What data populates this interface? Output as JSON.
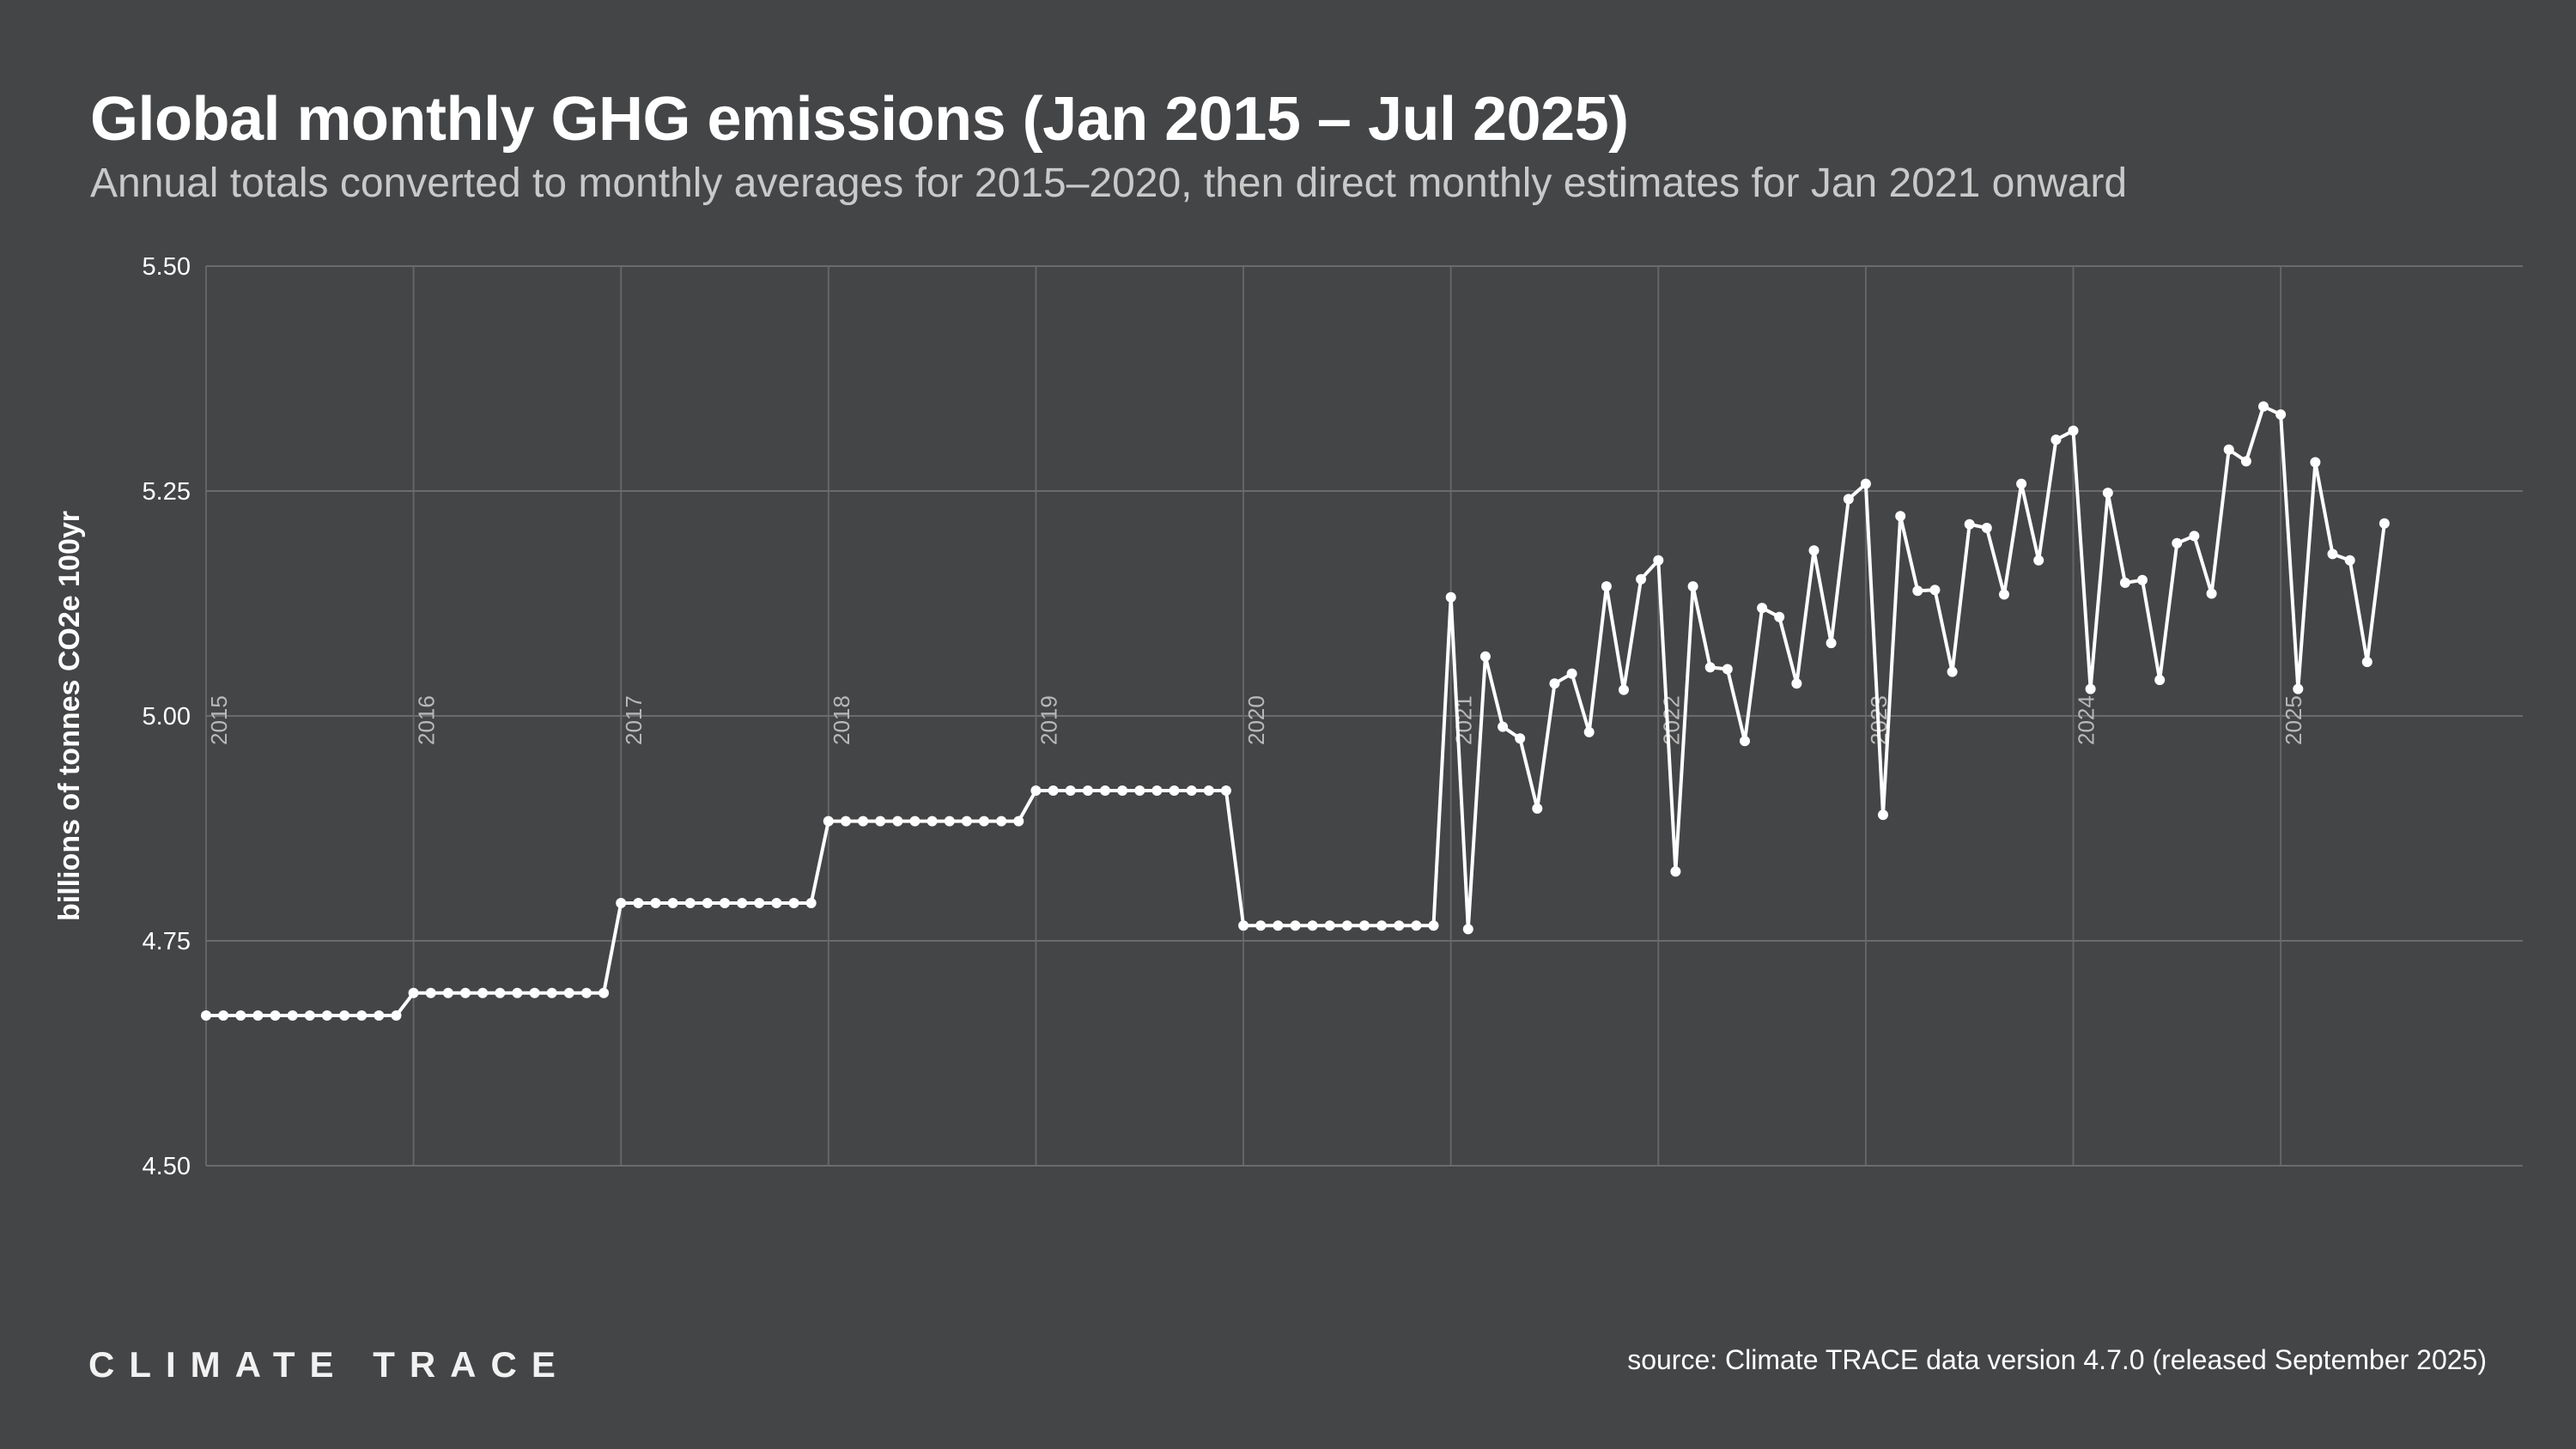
{
  "header": {
    "title": "Global monthly GHG emissions (Jan 2015 – Jul 2025)",
    "subtitle": "Annual totals converted to monthly averages for 2015–2020, then direct monthly estimates for Jan 2021 onward"
  },
  "footer": {
    "brand": "CLIMATE TRACE",
    "source": "source: Climate TRACE data version 4.7.0 (released September 2025)"
  },
  "colors": {
    "background": "#444547",
    "line": "#ffffff",
    "grid": "#6b6b6d",
    "year_label": "#b8b8b8"
  },
  "chart_data": {
    "type": "line",
    "title": "Global monthly GHG emissions (Jan 2015 – Jul 2025)",
    "subtitle": "Annual totals converted to monthly averages for 2015–2020, then direct monthly estimates for Jan 2021 onward",
    "xlabel": "",
    "ylabel": "billions of tonnes CO2e 100yr",
    "ylim": [
      4.5,
      5.5
    ],
    "yticks": [
      "4.50",
      "4.75",
      "5.00",
      "5.25",
      "5.50"
    ],
    "xlim": [
      "2015-01",
      "2026-03"
    ],
    "year_labels": [
      "2015",
      "2016",
      "2017",
      "2018",
      "2019",
      "2020",
      "2021",
      "2022",
      "2023",
      "2024",
      "2025"
    ],
    "grid": true,
    "legend": "none",
    "markers": true,
    "start": "2015-01",
    "series": [
      {
        "values": [
          4.667,
          4.667,
          4.667,
          4.667,
          4.667,
          4.667,
          4.667,
          4.667,
          4.667,
          4.667,
          4.667,
          4.667,
          4.692,
          4.692,
          4.692,
          4.692,
          4.692,
          4.692,
          4.692,
          4.692,
          4.692,
          4.692,
          4.692,
          4.692,
          4.792,
          4.792,
          4.792,
          4.792,
          4.792,
          4.792,
          4.792,
          4.792,
          4.792,
          4.792,
          4.792,
          4.792,
          4.883,
          4.883,
          4.883,
          4.883,
          4.883,
          4.883,
          4.883,
          4.883,
          4.883,
          4.883,
          4.883,
          4.883,
          4.917,
          4.917,
          4.917,
          4.917,
          4.917,
          4.917,
          4.917,
          4.917,
          4.917,
          4.917,
          4.917,
          4.917,
          4.767,
          4.767,
          4.767,
          4.767,
          4.767,
          4.767,
          4.767,
          4.767,
          4.767,
          4.767,
          4.767,
          4.767,
          5.132,
          4.763,
          5.066,
          4.988,
          4.975,
          4.897,
          5.036,
          5.047,
          4.982,
          5.144,
          5.029,
          5.152,
          5.173,
          4.827,
          5.144,
          5.054,
          5.052,
          4.972,
          5.12,
          5.11,
          5.036,
          5.184,
          5.081,
          5.241,
          5.258,
          4.89,
          5.222,
          5.139,
          5.14,
          5.049,
          5.213,
          5.209,
          5.135,
          5.258,
          5.173,
          5.307,
          5.317,
          5.03,
          5.248,
          5.148,
          5.151,
          5.04,
          5.192,
          5.2,
          5.136,
          5.296,
          5.283,
          5.344,
          5.335,
          5.03,
          5.282,
          5.18,
          5.173,
          5.06,
          5.214
        ]
      }
    ]
  }
}
